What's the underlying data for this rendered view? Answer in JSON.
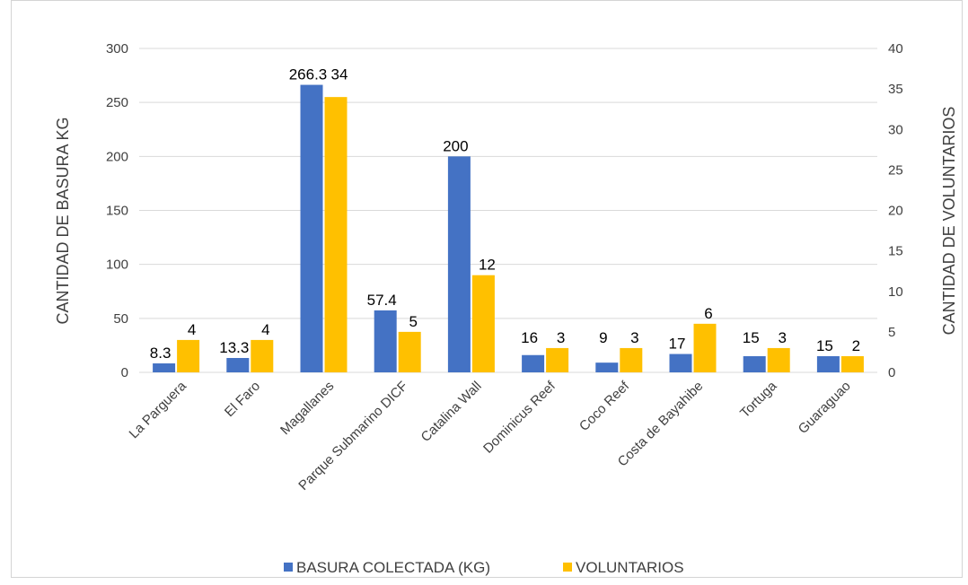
{
  "colors": {
    "basura": "#4472C4",
    "voluntarios": "#FFC000",
    "grid": "#d9d9d9",
    "text": "#404040"
  },
  "chart_data": {
    "type": "bar",
    "categories": [
      "La Parguera",
      "El Faro",
      "Magallanes",
      "Parque Submarino DICF",
      "Catalina Wall",
      "Dominicus Reef",
      "Coco Reef",
      "Costa de Bayahibe",
      "Tortuga",
      "Guaraguao"
    ],
    "series": [
      {
        "name": "BASURA COLECTADA (KG)",
        "axis": "left",
        "values": [
          8.3,
          13.3,
          266.3,
          57.4,
          200,
          16,
          9,
          17,
          15,
          15
        ],
        "labels": [
          "8.3",
          "13.3",
          "266.3",
          "57.4",
          "200",
          "16",
          "9",
          "17",
          "15",
          "15"
        ]
      },
      {
        "name": "VOLUNTARIOS",
        "axis": "right",
        "values": [
          4,
          4,
          34,
          5,
          12,
          3,
          3,
          6,
          3,
          2
        ],
        "labels": [
          "4",
          "4",
          "34",
          "5",
          "12",
          "3",
          "3",
          "6",
          "3",
          "2"
        ]
      }
    ],
    "ylabel": "CANTIDAD DE BASURA KG",
    "y2label": "CANTIDAD DE VOLUNTARIOS",
    "ylim": [
      0,
      300
    ],
    "y2lim": [
      0,
      40
    ],
    "yticks": [
      "0",
      "50",
      "100",
      "150",
      "200",
      "250",
      "300"
    ],
    "y2ticks": [
      "0",
      "5",
      "10",
      "15",
      "20",
      "25",
      "30",
      "35",
      "40"
    ],
    "grid": true,
    "legend": "bottom"
  }
}
